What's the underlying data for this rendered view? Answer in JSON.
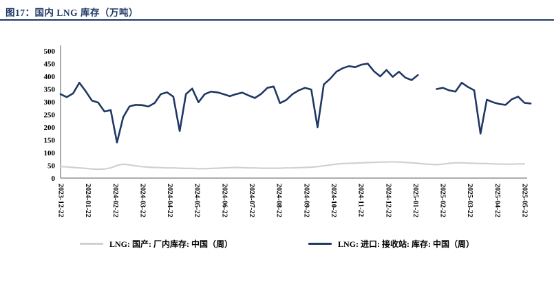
{
  "header": {
    "title": "图17：国内 LNG 库存（万吨）"
  },
  "legend": [
    {
      "label": "LNG: 国产: 厂内库存: 中国（周）",
      "color": "#D0D0D0"
    },
    {
      "label": "LNG: 进口: 接收站: 库存: 中国（周）",
      "color": "#1F3864"
    }
  ],
  "chart_data": {
    "type": "line",
    "title": "图17：国内 LNG 库存（万吨）",
    "xlabel": "",
    "ylabel": "",
    "ylim": [
      0,
      500
    ],
    "ytick_step": 50,
    "grid": false,
    "legend_position": "bottom",
    "x_labels": [
      "2023-12-22",
      "2024-01-22",
      "2024-02-22",
      "2024-03-22",
      "2024-04-22",
      "2024-05-22",
      "2024-06-22",
      "2024-07-22",
      "2024-08-22",
      "2024-09-22",
      "2024-10-22",
      "2024-11-22",
      "2024-12-22",
      "2025-01-22",
      "2025-02-22",
      "2025-03-22",
      "2025-04-22",
      "2025-05-22"
    ],
    "series": [
      {
        "name": "LNG: 国产: 厂内库存: 中国（周）",
        "color": "#D0D0D0",
        "width": 2.2,
        "values": [
          45,
          44,
          42,
          40,
          38,
          36,
          35,
          36,
          40,
          50,
          55,
          52,
          48,
          45,
          43,
          42,
          41,
          40,
          40,
          39,
          38,
          38,
          37,
          37,
          38,
          39,
          40,
          41,
          42,
          41,
          40,
          40,
          39,
          39,
          39,
          39,
          40,
          40,
          41,
          42,
          43,
          45,
          48,
          52,
          55,
          57,
          58,
          59,
          60,
          61,
          62,
          63,
          63,
          64,
          63,
          62,
          60,
          58,
          56,
          54,
          53,
          55,
          58,
          60,
          60,
          59,
          58,
          57,
          57,
          56,
          55,
          55,
          55,
          56,
          56
        ]
      },
      {
        "name": "LNG: 进口: 接收站: 库存: 中国（周）",
        "color": "#1F3864",
        "width": 2.6,
        "values": [
          330,
          318,
          333,
          375,
          342,
          305,
          297,
          262,
          267,
          140,
          240,
          282,
          288,
          287,
          281,
          295,
          330,
          337,
          320,
          185,
          330,
          352,
          298,
          330,
          340,
          337,
          330,
          322,
          330,
          336,
          325,
          315,
          331,
          355,
          360,
          295,
          307,
          330,
          345,
          355,
          348,
          200,
          368,
          390,
          418,
          432,
          440,
          436,
          446,
          450,
          420,
          400,
          425,
          398,
          418,
          395,
          385,
          405,
          null,
          null,
          350,
          355,
          345,
          340,
          375,
          358,
          345,
          175,
          308,
          298,
          291,
          288,
          310,
          320,
          296,
          293
        ]
      }
    ]
  }
}
